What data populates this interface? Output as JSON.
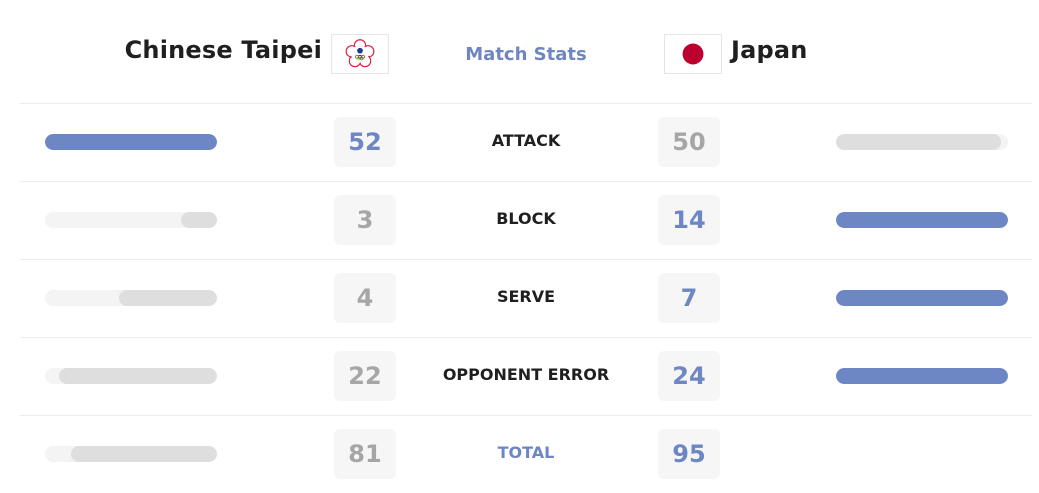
{
  "header": {
    "home_team": "Chinese Taipei",
    "away_team": "Japan",
    "title": "Match Stats",
    "home_flag_icon": "chinese-taipei-olympic-flag-icon",
    "away_flag_icon": "japan-flag-icon"
  },
  "colors": {
    "accent": "#6d86c4",
    "muted_number": "#a6a6a6",
    "bar_track": "#f4f4f4",
    "bar_lose": "#dedede",
    "japan_red": "#bc002d"
  },
  "stats": [
    {
      "label": "ATTACK",
      "home": "52",
      "away": "50",
      "home_bar": 1.0,
      "away_bar": 0.96,
      "leader": "home"
    },
    {
      "label": "BLOCK",
      "home": "3",
      "away": "14",
      "home_bar": 0.21,
      "away_bar": 1.0,
      "leader": "away"
    },
    {
      "label": "SERVE",
      "home": "4",
      "away": "7",
      "home_bar": 0.57,
      "away_bar": 1.0,
      "leader": "away"
    },
    {
      "label": "OPPONENT ERROR",
      "home": "22",
      "away": "24",
      "home_bar": 0.92,
      "away_bar": 1.0,
      "leader": "away"
    },
    {
      "label": "TOTAL",
      "home": "81",
      "away": "95",
      "home_bar": 0.85,
      "away_bar": 1.0,
      "leader": "away",
      "is_total": true
    }
  ]
}
